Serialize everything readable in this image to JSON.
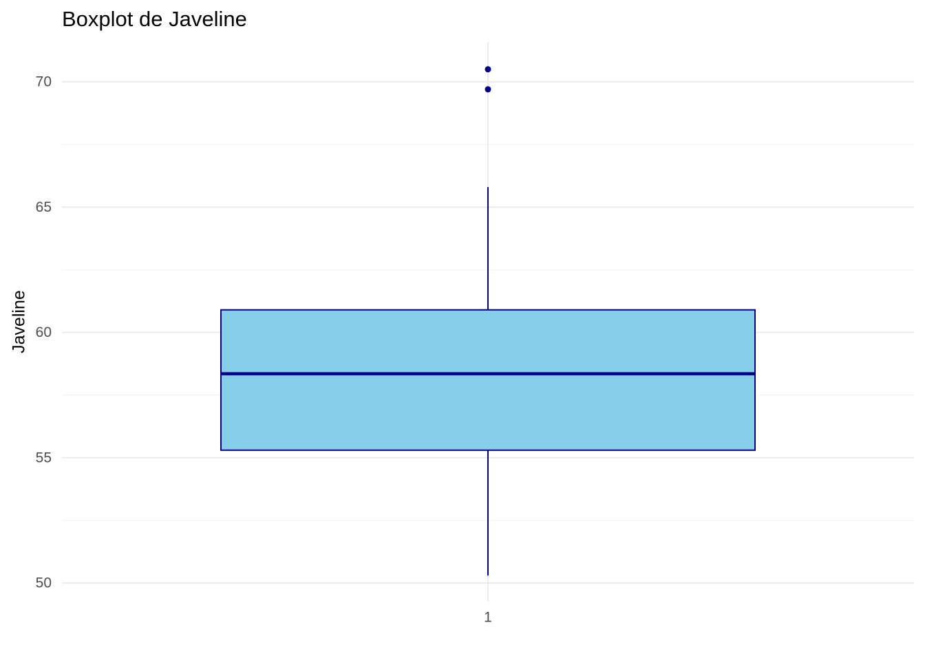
{
  "chart_data": {
    "type": "boxplot",
    "title": "Boxplot de Javeline",
    "xlabel": "",
    "ylabel": "Javeline",
    "categories": [
      "1"
    ],
    "ylim": [
      48.7,
      71.6
    ],
    "yticks": [
      50,
      55,
      60,
      65,
      70
    ],
    "ytick_labels": [
      "50",
      "55",
      "60",
      "65",
      "70"
    ],
    "grid": true,
    "legend": "none",
    "box": {
      "whisker_low": 50.3,
      "q1": 55.3,
      "median": 58.35,
      "q3": 60.9,
      "whisker_high": 65.8
    },
    "outliers": [
      69.7,
      70.5
    ],
    "colors": {
      "fill": "#87CEEB",
      "outline": "#00008B",
      "grid_major": "#EBEBEB",
      "grid_minor": "#F4F4F4",
      "tick_text": "#4D4D4D"
    }
  }
}
